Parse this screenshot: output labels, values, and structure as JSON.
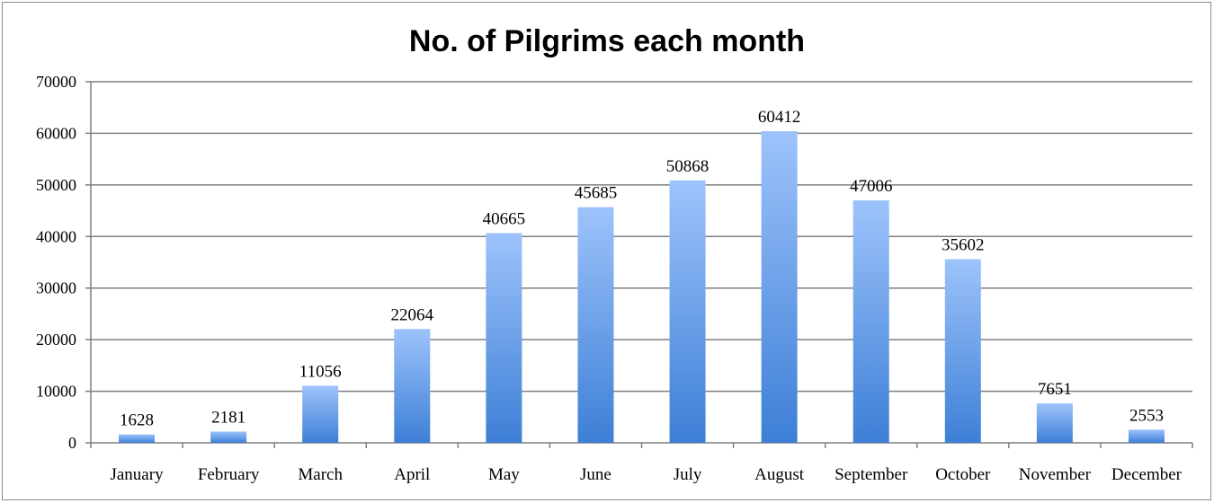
{
  "chart_data": {
    "type": "bar",
    "title": "No. of Pilgrims each month",
    "categories": [
      "January",
      "February",
      "March",
      "April",
      "May",
      "June",
      "July",
      "August",
      "September",
      "October",
      "November",
      "December"
    ],
    "values": [
      1628,
      2181,
      11056,
      22064,
      40665,
      45685,
      50868,
      60412,
      47006,
      35602,
      7651,
      2553
    ],
    "ylim": [
      0,
      70000
    ],
    "yticks": [
      0,
      10000,
      20000,
      30000,
      40000,
      50000,
      60000,
      70000
    ],
    "grid": true,
    "legend": "none",
    "colors": {
      "bar_top": "#9dc3fb",
      "bar_bottom": "#3d7fd6",
      "grid": "#7f7f7f"
    }
  }
}
